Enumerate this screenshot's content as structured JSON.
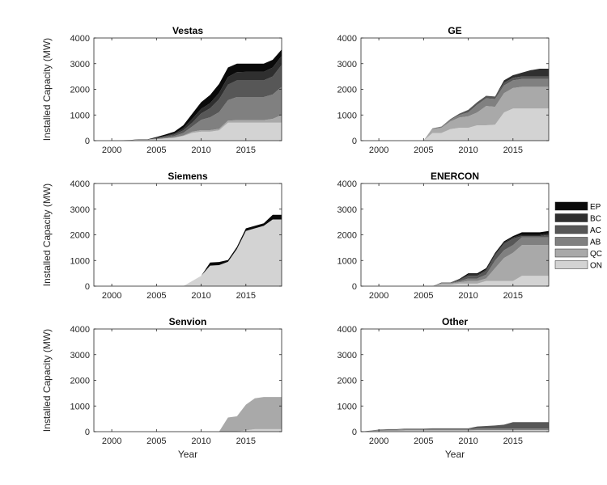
{
  "figure": {
    "xlabel": "Year",
    "ylabel": "Installed Capacity (MW)"
  },
  "legend": {
    "position": "right",
    "entries": [
      {
        "label": "EP",
        "color": "#0a0a0a"
      },
      {
        "label": "BC",
        "color": "#2f2f2f"
      },
      {
        "label": "AC",
        "color": "#575757"
      },
      {
        "label": "AB",
        "color": "#808080"
      },
      {
        "label": "QC",
        "color": "#a9a9a9"
      },
      {
        "label": "ON",
        "color": "#d3d3d3"
      }
    ]
  },
  "chart_data": [
    {
      "type": "area",
      "title": "Vestas",
      "x": [
        1998,
        1999,
        2000,
        2001,
        2002,
        2003,
        2004,
        2005,
        2006,
        2007,
        2008,
        2009,
        2010,
        2011,
        2012,
        2013,
        2014,
        2015,
        2016,
        2017,
        2018,
        2019
      ],
      "xlim": [
        1998,
        2019
      ],
      "ylim": [
        0,
        4000
      ],
      "xticks": [
        2000,
        2005,
        2010,
        2015
      ],
      "yticks": [
        0,
        1000,
        2000,
        3000,
        4000
      ],
      "series": [
        {
          "name": "ON",
          "values": [
            0,
            0,
            5,
            10,
            20,
            40,
            40,
            60,
            90,
            120,
            180,
            300,
            350,
            350,
            400,
            700,
            700,
            700,
            700,
            700,
            700,
            700
          ]
        },
        {
          "name": "QC",
          "values": [
            0,
            0,
            0,
            0,
            0,
            0,
            0,
            0,
            0,
            0,
            20,
            50,
            60,
            60,
            60,
            80,
            100,
            100,
            100,
            100,
            150,
            300
          ]
        },
        {
          "name": "AB",
          "values": [
            0,
            0,
            0,
            0,
            0,
            0,
            0,
            20,
            40,
            60,
            100,
            200,
            400,
            500,
            650,
            800,
            900,
            900,
            900,
            900,
            950,
            1100
          ]
        },
        {
          "name": "AC",
          "values": [
            0,
            0,
            0,
            0,
            0,
            0,
            0,
            20,
            40,
            60,
            100,
            150,
            250,
            350,
            500,
            600,
            650,
            650,
            650,
            650,
            700,
            850
          ]
        },
        {
          "name": "BC",
          "values": [
            0,
            0,
            0,
            0,
            0,
            0,
            0,
            10,
            20,
            40,
            80,
            150,
            180,
            200,
            250,
            300,
            320,
            330,
            330,
            330,
            350,
            350
          ]
        },
        {
          "name": "EP",
          "values": [
            0,
            0,
            0,
            0,
            5,
            10,
            10,
            30,
            50,
            70,
            120,
            200,
            260,
            320,
            350,
            370,
            330,
            320,
            320,
            320,
            300,
            250
          ]
        }
      ]
    },
    {
      "type": "area",
      "title": "GE",
      "x": [
        1998,
        1999,
        2000,
        2001,
        2002,
        2003,
        2004,
        2005,
        2006,
        2007,
        2008,
        2009,
        2010,
        2011,
        2012,
        2013,
        2014,
        2015,
        2016,
        2017,
        2018,
        2019
      ],
      "xlim": [
        1998,
        2019
      ],
      "ylim": [
        0,
        4000
      ],
      "xticks": [
        2000,
        2005,
        2010,
        2015
      ],
      "yticks": [
        0,
        1000,
        2000,
        3000,
        4000
      ],
      "series": [
        {
          "name": "ON",
          "values": [
            0,
            0,
            0,
            0,
            0,
            0,
            0,
            0,
            300,
            300,
            450,
            500,
            500,
            600,
            600,
            620,
            1100,
            1250,
            1250,
            1250,
            1250,
            1250
          ]
        },
        {
          "name": "QC",
          "values": [
            0,
            0,
            0,
            0,
            0,
            0,
            0,
            0,
            150,
            200,
            300,
            400,
            450,
            500,
            750,
            700,
            750,
            800,
            850,
            850,
            850,
            850
          ]
        },
        {
          "name": "AB",
          "values": [
            0,
            0,
            0,
            0,
            0,
            0,
            0,
            0,
            30,
            50,
            60,
            100,
            150,
            300,
            300,
            300,
            300,
            300,
            300,
            300,
            300,
            300
          ]
        },
        {
          "name": "AC",
          "values": [
            0,
            0,
            0,
            0,
            0,
            0,
            0,
            0,
            0,
            0,
            30,
            50,
            100,
            100,
            100,
            100,
            100,
            100,
            100,
            100,
            100,
            100
          ]
        },
        {
          "name": "BC",
          "values": [
            0,
            0,
            0,
            0,
            0,
            0,
            0,
            0,
            0,
            0,
            0,
            0,
            0,
            0,
            0,
            0,
            100,
            100,
            150,
            250,
            250,
            250
          ]
        },
        {
          "name": "EP",
          "values": [
            0,
            0,
            0,
            0,
            0,
            0,
            0,
            0,
            0,
            0,
            0,
            0,
            0,
            0,
            0,
            0,
            0,
            0,
            0,
            0,
            50,
            50
          ]
        }
      ]
    },
    {
      "type": "area",
      "title": "Siemens",
      "x": [
        1998,
        1999,
        2000,
        2001,
        2002,
        2003,
        2004,
        2005,
        2006,
        2007,
        2008,
        2009,
        2010,
        2011,
        2012,
        2013,
        2014,
        2015,
        2016,
        2017,
        2018,
        2019
      ],
      "xlim": [
        1998,
        2019
      ],
      "ylim": [
        0,
        4000
      ],
      "xticks": [
        2000,
        2005,
        2010,
        2015
      ],
      "yticks": [
        0,
        1000,
        2000,
        3000,
        4000
      ],
      "series": [
        {
          "name": "ON",
          "values": [
            0,
            0,
            0,
            0,
            0,
            0,
            0,
            0,
            0,
            0,
            0,
            200,
            400,
            800,
            820,
            950,
            1450,
            2150,
            2250,
            2350,
            2600,
            2600
          ]
        },
        {
          "name": "QC",
          "values": [
            0,
            0,
            0,
            0,
            0,
            0,
            0,
            0,
            0,
            0,
            0,
            0,
            0,
            0,
            0,
            0,
            0,
            0,
            0,
            0,
            0,
            0
          ]
        },
        {
          "name": "AB",
          "values": [
            0,
            0,
            0,
            0,
            0,
            0,
            0,
            0,
            0,
            0,
            0,
            0,
            0,
            0,
            0,
            0,
            0,
            0,
            0,
            0,
            0,
            0
          ]
        },
        {
          "name": "AC",
          "values": [
            0,
            0,
            0,
            0,
            0,
            0,
            0,
            0,
            0,
            0,
            0,
            0,
            0,
            0,
            0,
            0,
            0,
            0,
            0,
            0,
            0,
            0
          ]
        },
        {
          "name": "BC",
          "values": [
            0,
            0,
            0,
            0,
            0,
            0,
            0,
            0,
            0,
            0,
            0,
            0,
            0,
            0,
            0,
            0,
            0,
            0,
            0,
            0,
            0,
            0
          ]
        },
        {
          "name": "EP",
          "values": [
            0,
            0,
            0,
            0,
            0,
            0,
            0,
            0,
            0,
            0,
            0,
            0,
            0,
            120,
            120,
            70,
            80,
            100,
            100,
            100,
            180,
            180
          ]
        }
      ]
    },
    {
      "type": "area",
      "title": "ENERCON",
      "x": [
        1998,
        1999,
        2000,
        2001,
        2002,
        2003,
        2004,
        2005,
        2006,
        2007,
        2008,
        2009,
        2010,
        2011,
        2012,
        2013,
        2014,
        2015,
        2016,
        2017,
        2018,
        2019
      ],
      "xlim": [
        1998,
        2019
      ],
      "ylim": [
        0,
        4000
      ],
      "xticks": [
        2000,
        2005,
        2010,
        2015
      ],
      "yticks": [
        0,
        1000,
        2000,
        3000,
        4000
      ],
      "series": [
        {
          "name": "ON",
          "values": [
            0,
            0,
            0,
            0,
            0,
            0,
            0,
            0,
            0,
            50,
            50,
            100,
            100,
            100,
            200,
            200,
            200,
            200,
            400,
            400,
            400,
            400
          ]
        },
        {
          "name": "QC",
          "values": [
            0,
            0,
            0,
            0,
            0,
            0,
            0,
            0,
            0,
            50,
            50,
            50,
            100,
            100,
            100,
            500,
            900,
            1100,
            1200,
            1200,
            1200,
            1200
          ]
        },
        {
          "name": "AB",
          "values": [
            0,
            0,
            0,
            0,
            0,
            0,
            0,
            0,
            0,
            20,
            20,
            40,
            100,
            100,
            150,
            300,
            300,
            300,
            300,
            300,
            300,
            300
          ]
        },
        {
          "name": "AC",
          "values": [
            0,
            0,
            0,
            0,
            0,
            0,
            0,
            0,
            0,
            20,
            20,
            50,
            100,
            100,
            150,
            200,
            250,
            250,
            50,
            50,
            50,
            100
          ]
        },
        {
          "name": "BC",
          "values": [
            0,
            0,
            0,
            0,
            0,
            0,
            0,
            0,
            0,
            0,
            0,
            20,
            50,
            50,
            50,
            50,
            50,
            50,
            50,
            50,
            50,
            50
          ]
        },
        {
          "name": "EP",
          "values": [
            0,
            0,
            0,
            0,
            0,
            0,
            0,
            0,
            0,
            0,
            0,
            20,
            50,
            50,
            50,
            50,
            50,
            50,
            100,
            100,
            100,
            100
          ]
        }
      ]
    },
    {
      "type": "area",
      "title": "Senvion",
      "x": [
        1998,
        1999,
        2000,
        2001,
        2002,
        2003,
        2004,
        2005,
        2006,
        2007,
        2008,
        2009,
        2010,
        2011,
        2012,
        2013,
        2014,
        2015,
        2016,
        2017,
        2018,
        2019
      ],
      "xlim": [
        1998,
        2019
      ],
      "ylim": [
        0,
        4000
      ],
      "xticks": [
        2000,
        2005,
        2010,
        2015
      ],
      "yticks": [
        0,
        1000,
        2000,
        3000,
        4000
      ],
      "series": [
        {
          "name": "ON",
          "values": [
            0,
            0,
            0,
            0,
            0,
            0,
            0,
            0,
            0,
            0,
            0,
            0,
            0,
            0,
            0,
            0,
            0,
            50,
            100,
            100,
            100,
            100
          ]
        },
        {
          "name": "QC",
          "values": [
            0,
            0,
            0,
            0,
            0,
            0,
            0,
            0,
            0,
            0,
            0,
            0,
            0,
            0,
            0,
            550,
            600,
            1000,
            1200,
            1250,
            1250,
            1250
          ]
        },
        {
          "name": "AB",
          "values": [
            0,
            0,
            0,
            0,
            0,
            0,
            0,
            0,
            0,
            0,
            0,
            0,
            0,
            0,
            0,
            0,
            0,
            0,
            0,
            0,
            0,
            0
          ]
        },
        {
          "name": "AC",
          "values": [
            0,
            0,
            0,
            0,
            0,
            0,
            0,
            0,
            0,
            0,
            0,
            0,
            0,
            0,
            0,
            0,
            0,
            0,
            0,
            0,
            0,
            0
          ]
        },
        {
          "name": "BC",
          "values": [
            0,
            0,
            0,
            0,
            0,
            0,
            0,
            0,
            0,
            0,
            0,
            0,
            0,
            0,
            0,
            0,
            0,
            0,
            0,
            0,
            0,
            0
          ]
        },
        {
          "name": "EP",
          "values": [
            0,
            0,
            0,
            0,
            0,
            0,
            0,
            0,
            0,
            0,
            0,
            0,
            0,
            0,
            0,
            0,
            0,
            0,
            0,
            0,
            0,
            0
          ]
        }
      ]
    },
    {
      "type": "area",
      "title": "Other",
      "x": [
        1998,
        1999,
        2000,
        2001,
        2002,
        2003,
        2004,
        2005,
        2006,
        2007,
        2008,
        2009,
        2010,
        2011,
        2012,
        2013,
        2014,
        2015,
        2016,
        2017,
        2018,
        2019
      ],
      "xlim": [
        1998,
        2019
      ],
      "ylim": [
        0,
        4000
      ],
      "xticks": [
        2000,
        2005,
        2010,
        2015
      ],
      "yticks": [
        0,
        1000,
        2000,
        3000,
        4000
      ],
      "series": [
        {
          "name": "ON",
          "values": [
            0,
            20,
            30,
            40,
            40,
            50,
            50,
            50,
            50,
            50,
            50,
            50,
            50,
            60,
            60,
            60,
            60,
            60,
            60,
            60,
            60,
            60
          ]
        },
        {
          "name": "QC",
          "values": [
            0,
            0,
            0,
            0,
            0,
            0,
            0,
            0,
            0,
            0,
            0,
            0,
            0,
            0,
            0,
            0,
            0,
            0,
            0,
            0,
            0,
            0
          ]
        },
        {
          "name": "AB",
          "values": [
            0,
            20,
            30,
            40,
            40,
            50,
            50,
            50,
            50,
            50,
            50,
            50,
            50,
            60,
            60,
            60,
            60,
            60,
            60,
            60,
            60,
            60
          ]
        },
        {
          "name": "AC",
          "values": [
            0,
            0,
            20,
            20,
            20,
            20,
            20,
            20,
            30,
            30,
            30,
            30,
            30,
            80,
            100,
            120,
            150,
            250,
            250,
            250,
            250,
            250
          ]
        },
        {
          "name": "BC",
          "values": [
            0,
            0,
            0,
            0,
            0,
            0,
            0,
            0,
            0,
            0,
            0,
            0,
            0,
            0,
            0,
            0,
            0,
            0,
            0,
            0,
            0,
            0
          ]
        },
        {
          "name": "EP",
          "values": [
            0,
            0,
            0,
            0,
            0,
            0,
            0,
            0,
            0,
            0,
            0,
            0,
            0,
            0,
            0,
            0,
            0,
            0,
            0,
            0,
            0,
            0
          ]
        }
      ]
    }
  ]
}
